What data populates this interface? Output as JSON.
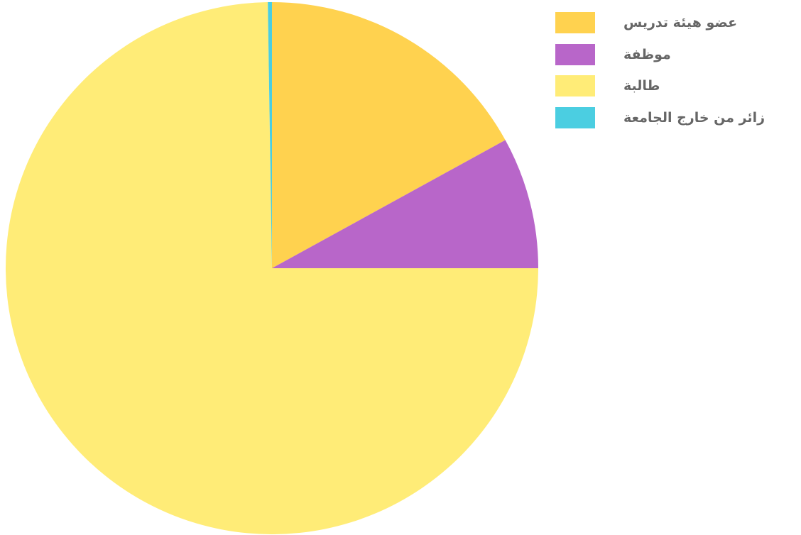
{
  "chart_data": {
    "type": "pie",
    "categories": [
      "عضو هيئة تدريس",
      "موظفة",
      "طالبة",
      "زائر من خارج الجامعة"
    ],
    "values": [
      17.0,
      8.0,
      74.75,
      0.25
    ],
    "colors": [
      "#FFD24F",
      "#B866C9",
      "#FFEC77",
      "#4BCEE1"
    ],
    "start_angle": "top",
    "direction": "clockwise",
    "legend_position": "top-right",
    "title": ""
  }
}
